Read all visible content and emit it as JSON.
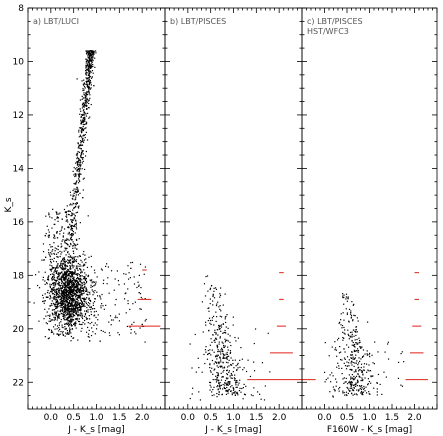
{
  "chart_data": {
    "type": "scatter",
    "ylabel": "K_s",
    "ylim": [
      8,
      23
    ],
    "y_inverted": true,
    "yticks": [
      "8",
      "10",
      "12",
      "14",
      "16",
      "18",
      "20",
      "22"
    ],
    "panels": [
      {
        "id": "a",
        "title": [
          "a) LBT/LUCI"
        ],
        "xlabel": "J - K_s [mag]",
        "xlim": [
          -0.5,
          2.5
        ],
        "xticks": [
          "0.0",
          "0.5",
          "1.0",
          "1.5",
          "2.0"
        ],
        "distribution": {
          "rgb_tip": {
            "x": 0.88,
            "y": 9.6
          },
          "rgb_mid": {
            "x": 0.52,
            "y": 15.5
          },
          "clump": {
            "x": 0.4,
            "y": 18.7,
            "sx": 0.22,
            "sy": 0.7
          },
          "faint_limit": 20.4,
          "n_points": 2600
        },
        "error_bars": [
          {
            "mag": 17.8,
            "err": 0.05
          },
          {
            "mag": 18.9,
            "err": 0.15
          },
          {
            "mag": 19.9,
            "err": 0.35
          }
        ]
      },
      {
        "id": "b",
        "title": [
          "b) LBT/PISCES"
        ],
        "xlabel": "J - K_s [mag]",
        "xlim": [
          -0.5,
          2.5
        ],
        "xticks": [
          "0.0",
          "0.5",
          "1.0",
          "1.5",
          "2.0"
        ],
        "distribution": {
          "rgb_top": {
            "x": 0.45,
            "y": 17.7
          },
          "rgb_bottom": {
            "x": 0.9,
            "y": 22.5
          },
          "faint_limit": 22.8,
          "n_points": 420
        },
        "error_bars": [
          {
            "mag": 17.9,
            "err": 0.05
          },
          {
            "mag": 18.9,
            "err": 0.05
          },
          {
            "mag": 19.9,
            "err": 0.1
          },
          {
            "mag": 20.9,
            "err": 0.25
          },
          {
            "mag": 21.9,
            "err": 0.75
          }
        ]
      },
      {
        "id": "c",
        "title": [
          "c) LBT/PISCES",
          "HST/WFC3"
        ],
        "xlabel": "F160W - K_s [mag]",
        "xlim": [
          -0.5,
          2.5
        ],
        "xticks": [
          "0.0",
          "0.5",
          "1.0",
          "1.5",
          "2.0"
        ],
        "distribution": {
          "rgb_top": {
            "x": 0.4,
            "y": 18.0
          },
          "rgb_bottom": {
            "x": 0.75,
            "y": 22.5
          },
          "faint_limit": 22.8,
          "n_points": 380
        },
        "error_bars": [
          {
            "mag": 17.9,
            "err": 0.05
          },
          {
            "mag": 18.9,
            "err": 0.05
          },
          {
            "mag": 19.9,
            "err": 0.1
          },
          {
            "mag": 20.9,
            "err": 0.15
          },
          {
            "mag": 21.9,
            "err": 0.25
          }
        ]
      }
    ],
    "colors": {
      "points": "#000000",
      "error_bars": "#e0201a",
      "title_text": "#555555"
    }
  }
}
